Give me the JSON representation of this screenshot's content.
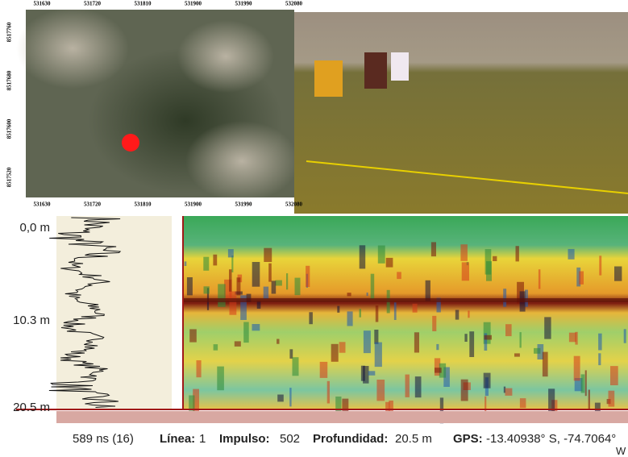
{
  "map": {
    "x_ticks": [
      531630,
      531720,
      531810,
      531900,
      531990,
      532080
    ],
    "y_ticks": [
      8517760,
      8517680,
      8517600,
      8517520
    ]
  },
  "radargram": {
    "depth_labels": [
      "0,0 m",
      "10.3 m",
      "20.5 m"
    ]
  },
  "status": {
    "time": "589 ns (16)",
    "line_label": "Línea:",
    "line": 1,
    "impulse_label": "Impulso:",
    "impulse": 502,
    "depth_label": "Profundidad:",
    "depth": "20.5 m",
    "gps_label": "GPS:",
    "gps": "-13.40938° S, -74.7064°",
    "gps_suffix": "W"
  }
}
